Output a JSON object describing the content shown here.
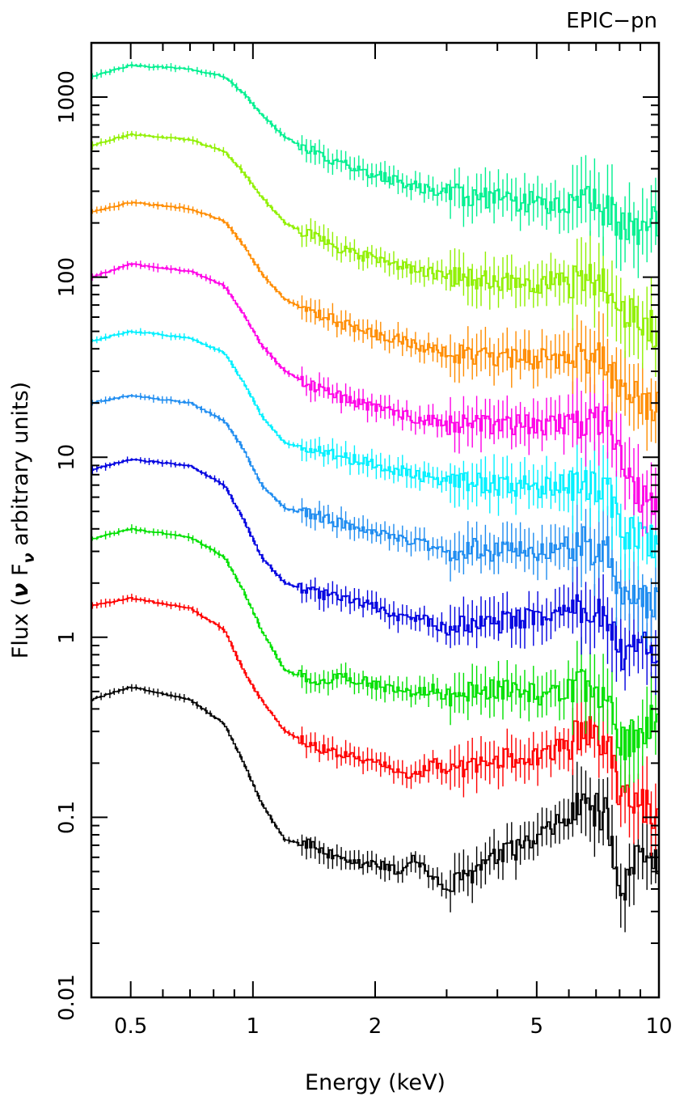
{
  "chart_data": {
    "type": "line",
    "title": "",
    "corner_label": "EPIC−pn",
    "xlabel": "Energy (keV)",
    "ylabel_parts": {
      "pre": "Flux (",
      "nu1": "ν",
      "F": " F",
      "nu_sub": "ν",
      "post": " arbitrary units)"
    },
    "x_scale": "log",
    "y_scale": "log",
    "xlim": [
      0.4,
      10
    ],
    "ylim": [
      0.01,
      2000
    ],
    "x_ticks": [
      {
        "value": 0.5,
        "label": "0.5"
      },
      {
        "value": 1,
        "label": "1"
      },
      {
        "value": 2,
        "label": "2"
      },
      {
        "value": 5,
        "label": "5"
      },
      {
        "value": 10,
        "label": "10"
      }
    ],
    "y_ticks": [
      {
        "value": 0.01,
        "label": "0.01"
      },
      {
        "value": 0.1,
        "label": "0.1"
      },
      {
        "value": 1,
        "label": "1"
      },
      {
        "value": 10,
        "label": "10"
      },
      {
        "value": 100,
        "label": "100"
      },
      {
        "value": 1000,
        "label": "1000"
      }
    ],
    "grid": false,
    "legend": "none",
    "series": [
      {
        "color": "#000000",
        "x": [
          0.4,
          0.5,
          0.7,
          0.85,
          0.95,
          1.05,
          1.2,
          1.4,
          1.7,
          2.0,
          2.3,
          2.5,
          2.8,
          3.0,
          3.5,
          4.0,
          5.0,
          6.0,
          6.5,
          7.0,
          7.5,
          8.0,
          9.0,
          10.0
        ],
        "y": [
          0.45,
          0.53,
          0.45,
          0.33,
          0.2,
          0.12,
          0.075,
          0.07,
          0.055,
          0.055,
          0.05,
          0.06,
          0.045,
          0.04,
          0.05,
          0.06,
          0.075,
          0.1,
          0.12,
          0.11,
          0.1,
          0.03,
          0.07,
          0.06
        ]
      },
      {
        "color": "#ff0000",
        "x": [
          0.4,
          0.5,
          0.7,
          0.85,
          0.95,
          1.05,
          1.2,
          1.4,
          1.7,
          2.0,
          2.3,
          2.5,
          2.8,
          3.0,
          3.5,
          4.0,
          5.0,
          6.0,
          6.5,
          7.0,
          7.5,
          8.0,
          9.0,
          10.0
        ],
        "y": [
          1.5,
          1.65,
          1.45,
          1.1,
          0.65,
          0.45,
          0.3,
          0.25,
          0.22,
          0.21,
          0.18,
          0.17,
          0.2,
          0.17,
          0.19,
          0.21,
          0.22,
          0.26,
          0.3,
          0.28,
          0.26,
          0.13,
          0.12,
          0.1
        ]
      },
      {
        "color": "#00e000",
        "x": [
          0.4,
          0.5,
          0.7,
          0.85,
          0.95,
          1.05,
          1.2,
          1.4,
          1.7,
          2.0,
          2.3,
          2.5,
          2.8,
          3.0,
          3.5,
          4.0,
          5.0,
          6.0,
          6.5,
          7.0,
          7.5,
          8.0,
          9.0,
          10.0
        ],
        "y": [
          3.5,
          4.0,
          3.6,
          2.8,
          1.8,
          1.1,
          0.65,
          0.58,
          0.6,
          0.55,
          0.5,
          0.48,
          0.52,
          0.45,
          0.5,
          0.52,
          0.48,
          0.52,
          0.55,
          0.5,
          0.48,
          0.25,
          0.3,
          0.4
        ]
      },
      {
        "color": "#0000e0",
        "x": [
          0.4,
          0.5,
          0.7,
          0.85,
          0.95,
          1.05,
          1.2,
          1.4,
          1.7,
          2.0,
          2.3,
          2.5,
          2.8,
          3.0,
          3.5,
          4.0,
          5.0,
          6.0,
          6.5,
          7.0,
          7.5,
          8.0,
          9.0,
          10.0
        ],
        "y": [
          8.5,
          9.7,
          9.0,
          7.0,
          4.5,
          2.8,
          2.0,
          1.8,
          1.6,
          1.5,
          1.3,
          1.3,
          1.2,
          1.1,
          1.2,
          1.2,
          1.3,
          1.4,
          1.5,
          1.4,
          1.3,
          0.8,
          0.85,
          0.9
        ]
      },
      {
        "color": "#1e8cf0",
        "x": [
          0.4,
          0.5,
          0.7,
          0.85,
          0.95,
          1.05,
          1.2,
          1.4,
          1.7,
          2.0,
          2.3,
          2.5,
          2.8,
          3.0,
          3.5,
          4.0,
          5.0,
          6.0,
          6.5,
          7.0,
          7.5,
          8.0,
          9.0,
          10.0
        ],
        "y": [
          20,
          22,
          20,
          16,
          11,
          7,
          5.2,
          4.8,
          4.2,
          3.8,
          3.5,
          3.4,
          3.2,
          3.0,
          3.1,
          3.0,
          3.0,
          3.2,
          3.3,
          3.1,
          3.0,
          1.8,
          1.6,
          1.6
        ]
      },
      {
        "color": "#00f0ff",
        "x": [
          0.4,
          0.5,
          0.7,
          0.85,
          0.95,
          1.05,
          1.2,
          1.4,
          1.7,
          2.0,
          2.3,
          2.5,
          2.8,
          3.0,
          3.5,
          4.0,
          5.0,
          6.0,
          6.5,
          7.0,
          7.5,
          8.0,
          9.0,
          10.0
        ],
        "y": [
          44,
          50,
          46,
          38,
          26,
          17,
          12,
          11,
          10,
          9,
          8.5,
          8.0,
          7.5,
          7.2,
          7.2,
          7.0,
          6.8,
          7.0,
          7.2,
          6.8,
          6.5,
          4.0,
          3.5,
          3.4
        ]
      },
      {
        "color": "#ff00e6",
        "x": [
          0.4,
          0.5,
          0.7,
          0.85,
          0.95,
          1.05,
          1.2,
          1.4,
          1.7,
          2.0,
          2.3,
          2.5,
          2.8,
          3.0,
          3.5,
          4.0,
          5.0,
          6.0,
          6.5,
          7.0,
          7.5,
          8.0,
          9.0,
          10.0
        ],
        "y": [
          100,
          118,
          108,
          90,
          62,
          42,
          30,
          25,
          21,
          19,
          17.5,
          16.5,
          16,
          15,
          15,
          15,
          15,
          15.5,
          16,
          15.5,
          15,
          9.5,
          6.0,
          6.0
        ]
      },
      {
        "color": "#ff8c00",
        "x": [
          0.4,
          0.5,
          0.7,
          0.85,
          0.95,
          1.05,
          1.2,
          1.4,
          1.7,
          2.0,
          2.3,
          2.5,
          2.8,
          3.0,
          3.5,
          4.0,
          5.0,
          6.0,
          6.5,
          7.0,
          7.5,
          8.0,
          9.0,
          10.0
        ],
        "y": [
          230,
          260,
          240,
          205,
          150,
          105,
          75,
          65,
          54,
          48,
          45,
          42,
          40,
          38,
          37,
          36,
          35,
          36,
          37,
          35,
          33,
          25,
          20,
          20
        ]
      },
      {
        "color": "#90f000",
        "x": [
          0.4,
          0.5,
          0.7,
          0.85,
          0.95,
          1.05,
          1.2,
          1.4,
          1.7,
          2.0,
          2.3,
          2.5,
          2.8,
          3.0,
          3.5,
          4.0,
          5.0,
          6.0,
          6.5,
          7.0,
          7.5,
          8.0,
          9.0,
          10.0
        ],
        "y": [
          540,
          620,
          580,
          500,
          380,
          280,
          200,
          170,
          140,
          125,
          115,
          110,
          105,
          100,
          98,
          95,
          92,
          95,
          97,
          92,
          88,
          70,
          55,
          50
        ]
      },
      {
        "color": "#00f090",
        "x": [
          0.4,
          0.5,
          0.7,
          0.85,
          0.95,
          1.05,
          1.2,
          1.4,
          1.7,
          2.0,
          2.3,
          2.5,
          2.8,
          3.0,
          3.5,
          4.0,
          5.0,
          6.0,
          6.5,
          7.0,
          7.5,
          8.0,
          9.0,
          10.0
        ],
        "y": [
          1300,
          1500,
          1430,
          1300,
          1050,
          800,
          600,
          500,
          420,
          370,
          340,
          320,
          300,
          290,
          280,
          270,
          260,
          255,
          255,
          250,
          240,
          200,
          185,
          200
        ]
      }
    ]
  }
}
